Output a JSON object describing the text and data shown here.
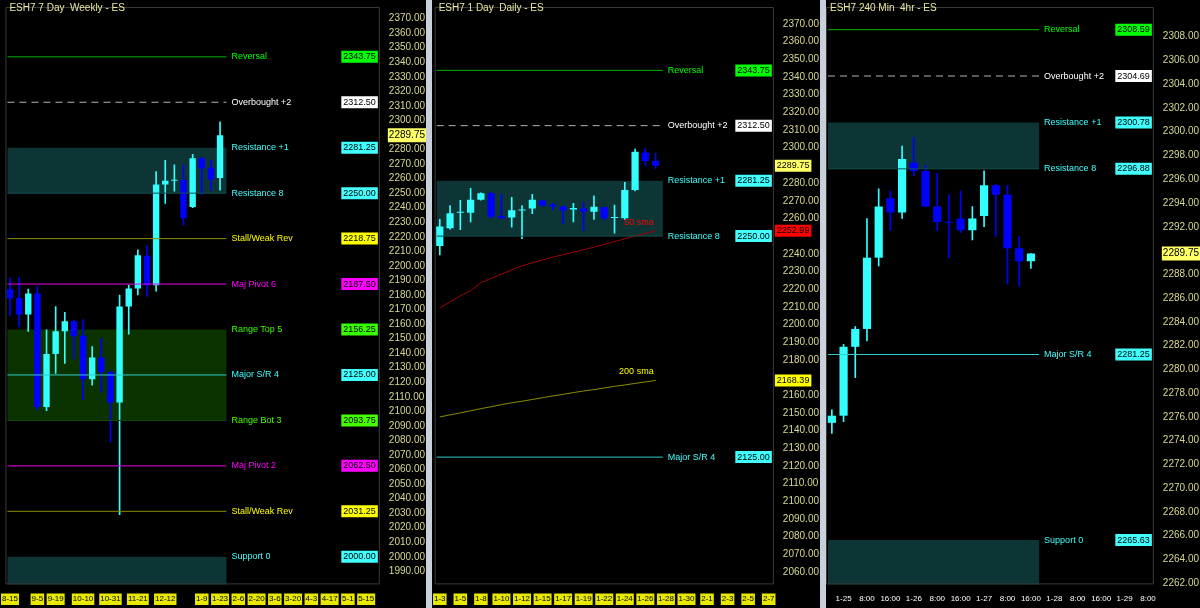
{
  "chart_data": [
    {
      "type": "candlestick",
      "title": "ESH7 7 Day  Weekly - ES",
      "categories": [
        "8-15",
        null,
        null,
        "9-5",
        null,
        "9-19",
        null,
        null,
        "10-10",
        null,
        null,
        "10-31",
        null,
        null,
        "11-21",
        null,
        null,
        "12-12",
        null,
        null,
        null,
        "1-9",
        null,
        "1-23",
        null,
        "2-6",
        null,
        "2-20",
        null,
        "3-6",
        null,
        "3-20",
        null,
        "4-3",
        null,
        "4-17",
        null,
        "5-1",
        null,
        "5-15",
        null
      ],
      "series": [
        {
          "type": "candlestick",
          "ohlc": [
            [
              2184,
              2191.8,
              2166,
              2177.5
            ],
            [
              2178,
              2192,
              2158,
              2166.6
            ],
            [
              2166.6,
              2184,
              2155,
              2181
            ],
            [
              2181,
              2186,
              2101,
              2103
            ],
            [
              2103,
              2156,
              2100.5,
              2139.5
            ],
            [
              2139.5,
              2172,
              2126,
              2155
            ],
            [
              2155,
              2168,
              2133,
              2162
            ],
            [
              2162,
              2162.5,
              2136,
              2151.6
            ],
            [
              2152,
              2163,
              2108,
              2122
            ],
            [
              2122,
              2144.6,
              2118,
              2137
            ],
            [
              2137,
              2150,
              2113,
              2127
            ],
            [
              2127,
              2127.5,
              2079,
              2106
            ],
            [
              2106,
              2180,
              2029,
              2172
            ],
            [
              2172,
              2186.6,
              2153,
              2184.5
            ],
            [
              2184.5,
              2211,
              2180,
              2207.3
            ],
            [
              2207,
              2213.8,
              2179,
              2186.6
            ],
            [
              2186.6,
              2264.8,
              2182.7,
              2256
            ],
            [
              2256,
              2272.6,
              2243,
              2258.6
            ],
            [
              2258.6,
              2269.5,
              2251.4,
              2259
            ],
            [
              2259,
              2269.5,
              2228,
              2232.7
            ],
            [
              2240.5,
              2276.7,
              2240,
              2274
            ],
            [
              2274,
              2274.6,
              2248.8,
              2267
            ],
            [
              2267.4,
              2272.7,
              2252,
              2259.6
            ],
            [
              2260.4,
              2299,
              2252,
              2289.75
            ],
            null,
            null,
            null,
            null,
            null,
            null,
            null,
            null,
            null,
            null,
            null,
            null,
            null,
            null,
            null,
            null,
            null
          ],
          "colors": [
            "#0000ff",
            "#0000ff",
            "#33ffff",
            "#0000ff",
            "#33ffff",
            "#33ffff",
            "#33ffff",
            "#0000ff",
            "#0000ff",
            "#33ffff",
            "#0000ff",
            "#0000ff",
            "#33ffff",
            "#33ffff",
            "#33ffff",
            "#0000ff",
            "#33ffff",
            "#33ffff",
            "#33ffff",
            "#0000ff",
            "#33ffff",
            "#0000ff",
            "#0000ff",
            "#33ffff",
            null,
            null,
            null,
            null,
            null,
            null,
            null,
            null,
            null,
            null,
            null,
            null,
            null,
            null,
            null,
            null,
            null
          ]
        }
      ],
      "ylim": [
        1981,
        2378
      ],
      "yticks": [
        {
          "value": 1990,
          "label": "1990.00"
        },
        {
          "value": 2000,
          "label": "2000.00"
        },
        {
          "value": 2010,
          "label": "2010.00"
        },
        {
          "value": 2020,
          "label": "2020.00"
        },
        {
          "value": 2030,
          "label": "2030.00"
        },
        {
          "value": 2040,
          "label": "2040.00"
        },
        {
          "value": 2050,
          "label": "2050.00"
        },
        {
          "value": 2060,
          "label": "2060.00"
        },
        {
          "value": 2070,
          "label": "2070.00"
        },
        {
          "value": 2080,
          "label": "2080.00"
        },
        {
          "value": 2090,
          "label": "2090.00"
        },
        {
          "value": 2100,
          "label": "2100.00"
        },
        {
          "value": 2110,
          "label": "2110.00"
        },
        {
          "value": 2120,
          "label": "2120.00"
        },
        {
          "value": 2130,
          "label": "2130.00"
        },
        {
          "value": 2140,
          "label": "2140.00"
        },
        {
          "value": 2150,
          "label": "2150.00"
        },
        {
          "value": 2160,
          "label": "2160.00"
        },
        {
          "value": 2170,
          "label": "2170.00"
        },
        {
          "value": 2180,
          "label": "2180.00"
        },
        {
          "value": 2190,
          "label": "2190.00"
        },
        {
          "value": 2200,
          "label": "2200.00"
        },
        {
          "value": 2210,
          "label": "2210.00"
        },
        {
          "value": 2220,
          "label": "2220.00"
        },
        {
          "value": 2230,
          "label": "2230.00"
        },
        {
          "value": 2240,
          "label": "2240.00"
        },
        {
          "value": 2250,
          "label": "2250.00"
        },
        {
          "value": 2260,
          "label": "2260.00"
        },
        {
          "value": 2270,
          "label": "2270.00"
        },
        {
          "value": 2280,
          "label": "2280.00"
        },
        2289.75,
        {
          "value": 2300,
          "label": "2300.00"
        },
        {
          "value": 2310,
          "label": "2310.00"
        },
        {
          "value": 2320,
          "label": "2320.00"
        },
        {
          "value": 2330,
          "label": "2330.00"
        },
        {
          "value": 2340,
          "label": "2340.00"
        },
        {
          "value": 2350,
          "label": "2350.00"
        },
        {
          "value": 2360,
          "label": "2360.00"
        },
        {
          "value": 2370,
          "label": "2370.00"
        }
      ],
      "y2lim": [
        1981,
        2378
      ],
      "y2ticks": [
        2343.75,
        {
          "value": 2312.5,
          "label": "2312.50"
        },
        2281.25,
        {
          "value": 2250,
          "label": "2250.00"
        },
        2218.75,
        {
          "value": 2187.5,
          "label": "2187.50"
        },
        2156.25,
        {
          "value": 2125,
          "label": "2125.00"
        },
        2093.75,
        {
          "value": 2062.5,
          "label": "2062.50"
        },
        2031.25,
        {
          "value": 2000,
          "label": "2000.00"
        }
      ],
      "ref_lines": [
        {
          "axis": "y",
          "value": 2343.75,
          "label": "Reversal",
          "color": "#00b400"
        },
        {
          "axis": "y",
          "value": 2312.5,
          "label": "Overbought +2",
          "color": "#b4b4b4",
          "line_style": "dashed"
        },
        {
          "axis": "y",
          "value": 2250,
          "label": "Resistance 8",
          "color": "#154f4f"
        },
        {
          "axis": "y",
          "value": 2218.75,
          "label": "Stall/Weak Rev",
          "color": "#8c8c00"
        },
        {
          "axis": "y",
          "value": 2187.5,
          "label": "Maj Pivot 6",
          "color": "#e600e6"
        },
        {
          "axis": "y",
          "value": 2125,
          "label": "Major S/R 4",
          "color": "#33cccc"
        },
        {
          "axis": "y",
          "value": 2093.75,
          "label": "Range Bot 3",
          "color": "#144a00"
        },
        {
          "axis": "y",
          "value": 2062.5,
          "label": "Maj Pivot 2",
          "color": "#e600e6"
        },
        {
          "axis": "y",
          "value": 2031.25,
          "label": "Stall/Weak Rev",
          "color": "#8c8c00"
        }
      ],
      "bands": [
        {
          "axis": "y",
          "from": 2250,
          "to": 2281.25,
          "label": "Resistance +1",
          "color": "#0d3535"
        },
        {
          "axis": "y",
          "from": 2093.75,
          "to": 2156.25,
          "label": "Range Top 5",
          "color": "#0b3300"
        },
        {
          "axis": "y",
          "from": 1981,
          "to": 2000,
          "label": "Support 0",
          "color": "#0d3535"
        }
      ]
    },
    {
      "type": "candlestick",
      "title": "ESH7 1 Day  Daily - ES",
      "categories": [
        "1-3",
        null,
        "1-5",
        null,
        "1-8",
        null,
        "1-10",
        null,
        "1-12",
        null,
        "1-15",
        null,
        "1-17",
        null,
        "1-19",
        null,
        "1-22",
        null,
        "1-24",
        null,
        "1-26",
        null,
        "1-28",
        null,
        "1-30",
        null,
        "2-1",
        null,
        "2-3",
        null,
        "2-5",
        null,
        "2-7"
      ],
      "series": [
        {
          "type": "candlestick",
          "ohlc": [
            [
              2244.4,
              2259.5,
              2239.3,
              2255.5
            ],
            [
              2254.4,
              2267.3,
              2254,
              2262.9
            ],
            [
              2263.2,
              2270.2,
              2253.6,
              2263.5
            ],
            [
              2263.2,
              2277,
              2258.1,
              2270.6
            ],
            [
              2270.6,
              2274.5,
              2270.4,
              2274.3
            ],
            [
              2274.3,
              2274.8,
              2260.1,
              2261
            ],
            [
              2261.4,
              2273.7,
              2260,
              2260.1
            ],
            [
              2260.5,
              2271.9,
              2255,
              2264.7
            ],
            [
              2264.5,
              2267.3,
              2248.5,
              2265.1
            ],
            [
              2265.6,
              2273.7,
              2262.7,
              2270.6
            ],
            [
              2270.1,
              2270.3,
              2267,
              2267.3
            ],
            [
              2267.8,
              2268.6,
              2264.9,
              2266.7
            ],
            [
              2266.7,
              2266.8,
              2257.1,
              2264.5
            ],
            [
              2265.1,
              2268.6,
              2258.1,
              2265.9
            ],
            [
              2265.6,
              2269.1,
              2253.1,
              2263.8
            ],
            [
              2263.8,
              2272.8,
              2259.5,
              2266.6
            ],
            [
              2266.4,
              2266.4,
              2259.2,
              2260.1
            ],
            [
              2260.2,
              2267.5,
              2251.6,
              2260.6
            ],
            [
              2260.1,
              2280.4,
              2259.5,
              2276.1
            ],
            [
              2276.1,
              2299.2,
              2275.6,
              2297.7
            ],
            [
              2297.3,
              2299.6,
              2290,
              2292.5
            ],
            [
              2292.7,
              2296.8,
              2288.1,
              2289.75
            ],
            null,
            null,
            null,
            null,
            null,
            null,
            null,
            null,
            null,
            null,
            null
          ],
          "colors": [
            "#33ffff",
            "#33ffff",
            "#33ffff",
            "#33ffff",
            "#33ffff",
            "#0000ff",
            "#0000ff",
            "#33ffff",
            "#33ffff",
            "#33ffff",
            "#0000ff",
            "#0000ff",
            "#0000ff",
            "#33ffff",
            "#0000ff",
            "#33ffff",
            "#0000ff",
            "#33ffff",
            "#33ffff",
            "#33ffff",
            "#0000ff",
            "#0000ff",
            null,
            null,
            null,
            null,
            null,
            null,
            null,
            null,
            null,
            null,
            null
          ]
        },
        {
          "type": "line",
          "name": "50 sma",
          "color": "#a00000",
          "values": [
            2209.4,
            2212.8,
            2216.2,
            2219,
            2223.7,
            2226.1,
            2228.5,
            2230.9,
            2233.2,
            2234.9,
            2236.5,
            2238.1,
            2239.5,
            2240.9,
            2242.3,
            2243.8,
            2245.3,
            2246.9,
            2248.5,
            2250,
            2251.5,
            2252.99,
            null,
            null,
            null,
            null,
            null,
            null,
            null,
            null,
            null,
            null,
            null
          ]
        },
        {
          "type": "line",
          "name": "200 sma",
          "color": "#8c8c00",
          "values": [
            2147.7,
            2148.9,
            2150,
            2151.2,
            2152.4,
            2153.5,
            2154.7,
            2155.7,
            2156.6,
            2157.6,
            2158.6,
            2159.6,
            2160.5,
            2161.5,
            2162.4,
            2163.2,
            2164.1,
            2165,
            2165.8,
            2166.7,
            2167.5,
            2168.39,
            null,
            null,
            null,
            null,
            null,
            null,
            null,
            null,
            null,
            null,
            null
          ]
        }
      ],
      "ylim": [
        2053,
        2379.6
      ],
      "yticks": [
        {
          "value": 2060,
          "label": "2060.00"
        },
        {
          "value": 2070,
          "label": "2070.00"
        },
        {
          "value": 2080,
          "label": "2080.00"
        },
        {
          "value": 2090,
          "label": "2090.00"
        },
        {
          "value": 2100,
          "label": "2100.00"
        },
        {
          "value": 2110,
          "label": "2110.00"
        },
        {
          "value": 2120,
          "label": "2120.00"
        },
        {
          "value": 2130,
          "label": "2130.00"
        },
        {
          "value": 2140,
          "label": "2140.00"
        },
        {
          "value": 2150,
          "label": "2150.00"
        },
        {
          "value": 2160,
          "label": "2160.00"
        },
        {
          "value": 2180,
          "label": "2180.00"
        },
        {
          "value": 2190,
          "label": "2190.00"
        },
        {
          "value": 2200,
          "label": "2200.00"
        },
        {
          "value": 2210,
          "label": "2210.00"
        },
        {
          "value": 2220,
          "label": "2220.00"
        },
        {
          "value": 2230,
          "label": "2230.00"
        },
        {
          "value": 2240,
          "label": "2240.00"
        },
        {
          "value": 2260,
          "label": "2260.00"
        },
        {
          "value": 2270,
          "label": "2270.00"
        },
        {
          "value": 2280,
          "label": "2280.00"
        },
        {
          "value": 2300,
          "label": "2300.00"
        },
        {
          "value": 2310,
          "label": "2310.00"
        },
        {
          "value": 2320,
          "label": "2320.00"
        },
        {
          "value": 2330,
          "label": "2330.00"
        },
        {
          "value": 2340,
          "label": "2340.00"
        },
        {
          "value": 2350,
          "label": "2350.00"
        },
        {
          "value": 2360,
          "label": "2360.00"
        },
        {
          "value": 2370,
          "label": "2370.00"
        }
      ],
      "y2lim": [
        2053,
        2379.6
      ],
      "y3lim": [
        2053,
        2379.6
      ],
      "y3ticks": [
        2289.75,
        2252.99,
        2168.39
      ],
      "y2ticks": [
        2343.75,
        {
          "value": 2312.5,
          "label": "2312.50"
        },
        2281.25,
        {
          "value": 2250,
          "label": "2250.00"
        },
        {
          "value": 2125,
          "label": "2125.00"
        }
      ],
      "ref_lines": [
        {
          "axis": "y",
          "value": 2343.75,
          "label": "Reversal",
          "color": "#00b400"
        },
        {
          "axis": "y",
          "value": 2312.5,
          "label": "Overbought +2",
          "color": "#b4b4b4",
          "line_style": "dashed"
        },
        {
          "axis": "y",
          "value": 2250,
          "label": "Resistance 8",
          "color": "#154f4f"
        },
        {
          "axis": "y",
          "value": 2125,
          "label": "Major S/R 4",
          "color": "#33cccc"
        }
      ],
      "bands": [
        {
          "axis": "y",
          "from": 2250,
          "to": 2281.25,
          "label": "Resistance +1",
          "color": "#0d3535"
        }
      ]
    },
    {
      "type": "candlestick",
      "title": "ESH7 240 Min  4hr - ES",
      "categories": [
        null,
        "1-25",
        null,
        "8:00",
        null,
        "16:00",
        null,
        "1-26",
        null,
        "8:00",
        null,
        "16:00",
        null,
        "1-27",
        null,
        "8:00",
        null,
        "16:00",
        null,
        "1-28",
        null,
        "8:00",
        null,
        "16:00",
        null,
        "1-29",
        null,
        "8:00"
      ],
      "series": [
        {
          "type": "candlestick",
          "ohlc": [
            [
              2275.5,
              2276.6,
              2274.6,
              2276.1
            ],
            [
              2276.1,
              2282.1,
              2275.6,
              2281.9
            ],
            [
              2281.9,
              2283.6,
              2279.3,
              2283.4
            ],
            [
              2283.4,
              2292.7,
              2282.4,
              2289.4
            ],
            [
              2289.4,
              2295.2,
              2288.7,
              2293.7
            ],
            [
              2294.4,
              2295,
              2291.7,
              2293.2
            ],
            [
              2293.2,
              2298.8,
              2292.7,
              2297.7
            ],
            [
              2297.4,
              2299.5,
              2296.3,
              2296.7
            ],
            [
              2296.7,
              2297.2,
              2293.7,
              2293.7
            ],
            [
              2293.7,
              2296.5,
              2291.7,
              2292.4
            ],
            [
              2292.4,
              2294.7,
              2289.4,
              2292.35
            ],
            [
              2292.7,
              2295,
              2291.5,
              2291.7
            ],
            [
              2291.7,
              2293.7,
              2290.9,
              2292.7
            ],
            [
              2292.9,
              2296.7,
              2292,
              2295.5
            ],
            [
              2295.5,
              2295.6,
              2291.2,
              2294.7
            ],
            [
              2294.7,
              2295.5,
              2287.2,
              2290.2
            ],
            [
              2290.2,
              2291.2,
              2287,
              2289.1
            ],
            [
              2289.1,
              2289.75,
              2288.5,
              2289.75
            ],
            null,
            null,
            null,
            null,
            null,
            null,
            null,
            null,
            null,
            null
          ],
          "colors": [
            "#33ffff",
            "#33ffff",
            "#33ffff",
            "#33ffff",
            "#33ffff",
            "#0000ff",
            "#33ffff",
            "#0000ff",
            "#0000ff",
            "#0000ff",
            "#0000ff",
            "#0000ff",
            "#33ffff",
            "#33ffff",
            "#0000ff",
            "#0000ff",
            "#0000ff",
            "#33ffff",
            null,
            null,
            null,
            null,
            null,
            null,
            null,
            null,
            null,
            null
          ]
        }
      ],
      "ylim": [
        2261.9,
        2310.5
      ],
      "yticks": [
        {
          "value": 2262,
          "label": "2262.00"
        },
        {
          "value": 2264,
          "label": "2264.00"
        },
        {
          "value": 2266,
          "label": "2266.00"
        },
        {
          "value": 2268,
          "label": "2268.00"
        },
        {
          "value": 2270,
          "label": "2270.00"
        },
        {
          "value": 2272,
          "label": "2272.00"
        },
        {
          "value": 2274,
          "label": "2274.00"
        },
        {
          "value": 2276,
          "label": "2276.00"
        },
        {
          "value": 2278,
          "label": "2278.00"
        },
        {
          "value": 2280,
          "label": "2280.00"
        },
        {
          "value": 2282,
          "label": "2282.00"
        },
        {
          "value": 2284,
          "label": "2284.00"
        },
        {
          "value": 2286,
          "label": "2286.00"
        },
        {
          "value": 2288,
          "label": "2288.00"
        },
        2289.75,
        {
          "value": 2292,
          "label": "2292.00"
        },
        {
          "value": 2294,
          "label": "2294.00"
        },
        {
          "value": 2296,
          "label": "2296.00"
        },
        {
          "value": 2298,
          "label": "2298.00"
        },
        {
          "value": 2300,
          "label": "2300.00"
        },
        {
          "value": 2302,
          "label": "2302.00"
        },
        {
          "value": 2304,
          "label": "2304.00"
        },
        {
          "value": 2306,
          "label": "2306.00"
        },
        {
          "value": 2308,
          "label": "2308.00"
        }
      ],
      "y2lim": [
        2261.9,
        2310.5
      ],
      "y2ticks": [
        2308.59,
        2304.69,
        2300.78,
        2296.88,
        2281.25,
        2265.63
      ],
      "ref_lines": [
        {
          "axis": "y",
          "value": 2308.59,
          "label": "Reversal",
          "color": "#00b400"
        },
        {
          "axis": "y",
          "value": 2304.69,
          "label": "Overbought +2",
          "color": "#b4b4b4",
          "line_style": "dashed"
        },
        {
          "axis": "y",
          "value": 2296.88,
          "label": "Resistance 8",
          "color": "#154f4f"
        },
        {
          "axis": "y",
          "value": 2281.25,
          "label": "Major S/R 4",
          "color": "#33cccc"
        }
      ],
      "bands": [
        {
          "axis": "y",
          "from": 2296.88,
          "to": 2300.78,
          "label": "Resistance +1",
          "color": "#0d3535"
        },
        {
          "axis": "y",
          "from": 2261.9,
          "to": 2265.63,
          "label": "Support 0",
          "color": "#0d3535"
        }
      ]
    }
  ]
}
